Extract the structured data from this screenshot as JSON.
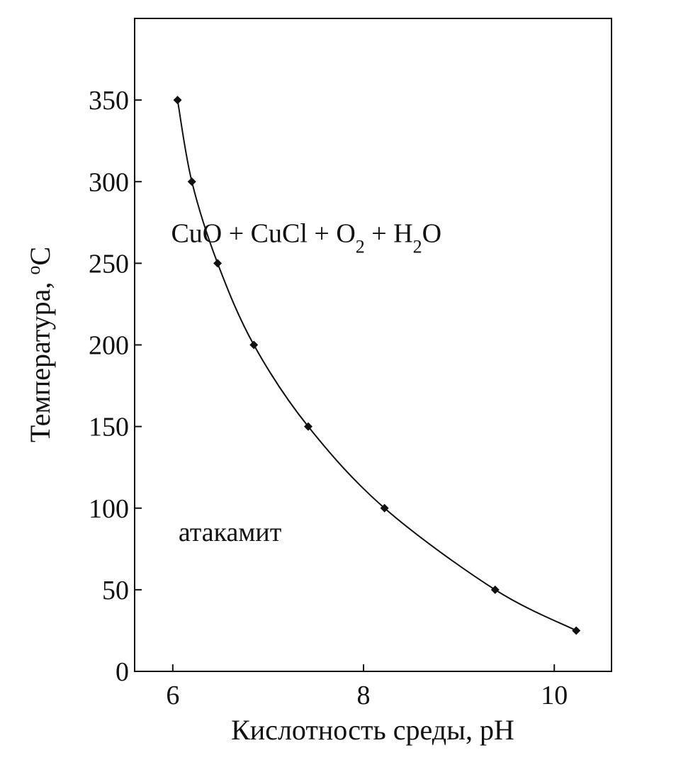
{
  "chart_data": {
    "type": "line",
    "xlabel": "Кислотность среды, pH",
    "ylabel": {
      "superscript": "o",
      "main": "Температура, ",
      "unit": "C"
    },
    "xlim": [
      5.6,
      10.6
    ],
    "ylim": [
      0,
      400
    ],
    "xticks": [
      6,
      8,
      10
    ],
    "yticks": [
      0,
      50,
      100,
      150,
      200,
      250,
      300,
      350
    ],
    "grid": false,
    "legend": "none",
    "series": [
      {
        "x": [
          6.05,
          6.2,
          6.47,
          6.85,
          7.42,
          8.22,
          9.38,
          10.23
        ],
        "y": [
          350,
          300,
          250,
          200,
          150,
          100,
          50,
          25
        ],
        "marker": "diamond",
        "color": "#111111"
      }
    ],
    "annotations": {
      "upper": {
        "parts": [
          "CuO + CuCl + O",
          "2",
          " + H",
          "2",
          "O"
        ],
        "x": 7.4,
        "y": 263
      },
      "lower": {
        "text": "атакамит",
        "x": 6.6,
        "y": 80
      }
    }
  }
}
